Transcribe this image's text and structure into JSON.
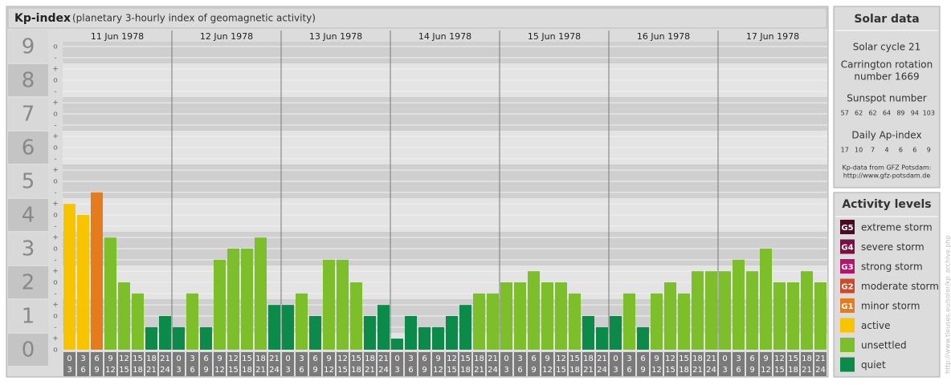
{
  "chart_data": {
    "type": "bar",
    "title": "Kp-index",
    "subtitle": "(planetary 3-hourly index of geomagnetic activity)",
    "ylim": [
      0,
      9
    ],
    "yticks": [
      0,
      1,
      2,
      3,
      4,
      5,
      6,
      7,
      8,
      9
    ],
    "minor_yticks": [
      {
        "value": 0,
        "label": "o"
      },
      {
        "value": 0.33,
        "label": "+"
      },
      {
        "value": 0.67,
        "label": "-"
      },
      {
        "value": 1,
        "label": "o"
      },
      {
        "value": 1.33,
        "label": "+"
      },
      {
        "value": 1.67,
        "label": "-"
      },
      {
        "value": 2,
        "label": "o"
      },
      {
        "value": 2.33,
        "label": "+"
      },
      {
        "value": 2.67,
        "label": "-"
      },
      {
        "value": 3,
        "label": "o"
      },
      {
        "value": 3.33,
        "label": "+"
      },
      {
        "value": 3.67,
        "label": "-"
      },
      {
        "value": 4,
        "label": "o"
      },
      {
        "value": 4.33,
        "label": "+"
      },
      {
        "value": 4.67,
        "label": "-"
      },
      {
        "value": 5,
        "label": "o"
      },
      {
        "value": 5.33,
        "label": "+"
      },
      {
        "value": 5.67,
        "label": "-"
      },
      {
        "value": 6,
        "label": "o"
      },
      {
        "value": 6.33,
        "label": "+"
      },
      {
        "value": 6.67,
        "label": "-"
      },
      {
        "value": 7,
        "label": "o"
      },
      {
        "value": 7.33,
        "label": "+"
      },
      {
        "value": 7.67,
        "label": "-"
      },
      {
        "value": 8,
        "label": "o"
      },
      {
        "value": 8.33,
        "label": "+"
      },
      {
        "value": 8.67,
        "label": "-"
      },
      {
        "value": 9,
        "label": "o"
      }
    ],
    "hour_labels": [
      [
        "0",
        "3"
      ],
      [
        "3",
        "6"
      ],
      [
        "6",
        "9"
      ],
      [
        "9",
        "12"
      ],
      [
        "12",
        "15"
      ],
      [
        "15",
        "18"
      ],
      [
        "18",
        "21"
      ],
      [
        "21",
        "24"
      ]
    ],
    "days": [
      {
        "date": "11 Jun 1978",
        "values": [
          4.33,
          4.0,
          4.67,
          3.33,
          2.0,
          1.67,
          0.67,
          1.0
        ],
        "colors": [
          "#f8c400",
          "#f8c400",
          "#e67b1e",
          "#7cbf2a",
          "#7cbf2a",
          "#7cbf2a",
          "#0b8a4a",
          "#0b8a4a"
        ]
      },
      {
        "date": "12 Jun 1978",
        "values": [
          0.67,
          1.67,
          0.67,
          2.67,
          3.0,
          3.0,
          3.33,
          1.33
        ],
        "colors": [
          "#0b8a4a",
          "#7cbf2a",
          "#0b8a4a",
          "#7cbf2a",
          "#7cbf2a",
          "#7cbf2a",
          "#7cbf2a",
          "#0b8a4a"
        ]
      },
      {
        "date": "13 Jun 1978",
        "values": [
          1.33,
          1.67,
          1.0,
          2.67,
          2.67,
          2.0,
          1.0,
          1.33
        ],
        "colors": [
          "#0b8a4a",
          "#7cbf2a",
          "#0b8a4a",
          "#7cbf2a",
          "#7cbf2a",
          "#7cbf2a",
          "#0b8a4a",
          "#0b8a4a"
        ]
      },
      {
        "date": "14 Jun 1978",
        "values": [
          0.33,
          1.0,
          0.67,
          0.67,
          1.0,
          1.33,
          1.67,
          1.67
        ],
        "colors": [
          "#0b8a4a",
          "#0b8a4a",
          "#0b8a4a",
          "#0b8a4a",
          "#0b8a4a",
          "#0b8a4a",
          "#7cbf2a",
          "#7cbf2a"
        ]
      },
      {
        "date": "15 Jun 1978",
        "values": [
          2.0,
          2.0,
          2.33,
          2.0,
          2.0,
          1.67,
          1.0,
          0.67
        ],
        "colors": [
          "#7cbf2a",
          "#7cbf2a",
          "#7cbf2a",
          "#7cbf2a",
          "#7cbf2a",
          "#7cbf2a",
          "#0b8a4a",
          "#0b8a4a"
        ]
      },
      {
        "date": "16 Jun 1978",
        "values": [
          1.0,
          1.67,
          0.67,
          1.67,
          2.0,
          1.67,
          2.33,
          2.33
        ],
        "colors": [
          "#0b8a4a",
          "#7cbf2a",
          "#0b8a4a",
          "#7cbf2a",
          "#7cbf2a",
          "#7cbf2a",
          "#7cbf2a",
          "#7cbf2a"
        ]
      },
      {
        "date": "17 Jun 1978",
        "values": [
          2.33,
          2.67,
          2.33,
          3.0,
          2.0,
          2.0,
          2.33,
          2.0
        ],
        "colors": [
          "#7cbf2a",
          "#7cbf2a",
          "#7cbf2a",
          "#7cbf2a",
          "#7cbf2a",
          "#7cbf2a",
          "#7cbf2a",
          "#7cbf2a"
        ]
      }
    ]
  },
  "solar_data": {
    "title": "Solar data",
    "cycle": "Solar cycle 21",
    "carrington": [
      "Carrington rotation",
      "number 1669"
    ],
    "sunspot_title": "Sunspot number",
    "sunspot": [
      "57",
      "62",
      "62",
      "64",
      "89",
      "94",
      "103"
    ],
    "ap_title": "Daily Ap-index",
    "ap": [
      "17",
      "10",
      "7",
      "4",
      "6",
      "6",
      "9"
    ],
    "source": [
      "Kp-data from GFZ Potsdam:",
      "http://www.gfz-potsdam.de"
    ]
  },
  "activity_levels": {
    "title": "Activity levels",
    "items": [
      {
        "badge": "G5",
        "name": "extreme storm",
        "color": "#4a0a22"
      },
      {
        "badge": "G4",
        "name": "severe storm",
        "color": "#7a1042"
      },
      {
        "badge": "G3",
        "name": "strong storm",
        "color": "#b5146a"
      },
      {
        "badge": "G2",
        "name": "moderate storm",
        "color": "#cc4a2a"
      },
      {
        "badge": "G1",
        "name": "minor storm",
        "color": "#e67b1e"
      },
      {
        "badge": null,
        "name": "active",
        "color": "#f8c400"
      },
      {
        "badge": null,
        "name": "unsettled",
        "color": "#7cbf2a"
      },
      {
        "badge": null,
        "name": "quiet",
        "color": "#0b8a4a"
      }
    ]
  },
  "watermark": "http://www.tleuses.eu/solar/kp_archive.php"
}
